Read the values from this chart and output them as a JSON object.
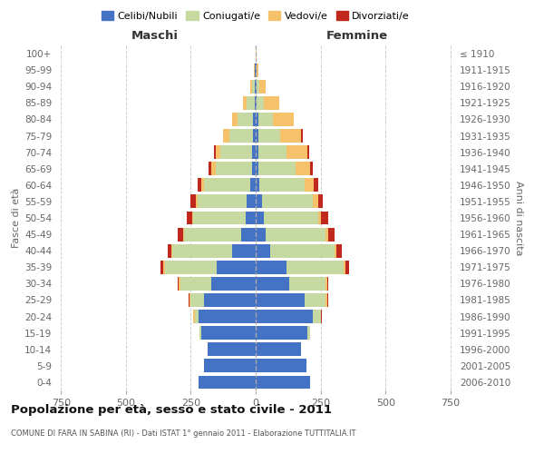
{
  "age_groups": [
    "0-4",
    "5-9",
    "10-14",
    "15-19",
    "20-24",
    "25-29",
    "30-34",
    "35-39",
    "40-44",
    "45-49",
    "50-54",
    "55-59",
    "60-64",
    "65-69",
    "70-74",
    "75-79",
    "80-84",
    "85-89",
    "90-94",
    "95-99",
    "100+"
  ],
  "birth_years": [
    "2006-2010",
    "2001-2005",
    "1996-2000",
    "1991-1995",
    "1986-1990",
    "1981-1985",
    "1976-1980",
    "1971-1975",
    "1966-1970",
    "1961-1965",
    "1956-1960",
    "1951-1955",
    "1946-1950",
    "1941-1945",
    "1936-1940",
    "1931-1935",
    "1926-1930",
    "1921-1925",
    "1916-1920",
    "1911-1915",
    "≤ 1910"
  ],
  "male": {
    "celibi": [
      220,
      200,
      185,
      210,
      220,
      200,
      170,
      150,
      90,
      55,
      40,
      35,
      20,
      15,
      15,
      10,
      10,
      5,
      5,
      2,
      0
    ],
    "coniugati": [
      0,
      0,
      0,
      5,
      15,
      50,
      120,
      200,
      230,
      220,
      200,
      190,
      180,
      140,
      120,
      90,
      60,
      30,
      10,
      3,
      0
    ],
    "vedovi": [
      0,
      0,
      0,
      0,
      5,
      5,
      5,
      5,
      5,
      5,
      5,
      5,
      10,
      15,
      20,
      25,
      20,
      15,
      5,
      2,
      0
    ],
    "divorziati": [
      0,
      0,
      0,
      0,
      2,
      3,
      5,
      10,
      15,
      20,
      20,
      20,
      15,
      10,
      5,
      0,
      0,
      0,
      0,
      0,
      0
    ]
  },
  "female": {
    "nubili": [
      210,
      195,
      175,
      200,
      220,
      190,
      130,
      120,
      55,
      40,
      30,
      25,
      15,
      10,
      10,
      10,
      10,
      5,
      5,
      2,
      0
    ],
    "coniugate": [
      0,
      0,
      0,
      10,
      30,
      80,
      140,
      220,
      250,
      230,
      210,
      195,
      175,
      145,
      110,
      85,
      55,
      25,
      8,
      2,
      0
    ],
    "vedove": [
      0,
      0,
      0,
      0,
      3,
      5,
      5,
      5,
      5,
      10,
      10,
      20,
      35,
      55,
      80,
      80,
      80,
      60,
      25,
      5,
      2
    ],
    "divorziate": [
      0,
      0,
      0,
      0,
      1,
      3,
      5,
      15,
      20,
      25,
      30,
      20,
      15,
      10,
      5,
      5,
      0,
      0,
      0,
      0,
      0
    ]
  },
  "colors": {
    "celibi": "#4472c4",
    "coniugati": "#c5d9a0",
    "vedovi": "#f5c26b",
    "divorziati": "#c0271d"
  },
  "title": "Popolazione per età, sesso e stato civile - 2011",
  "subtitle": "COMUNE DI FARA IN SABINA (RI) - Dati ISTAT 1° gennaio 2011 - Elaborazione TUTTITALIA.IT",
  "xlabel_left": "Maschi",
  "xlabel_right": "Femmine",
  "ylabel_left": "Fasce di età",
  "ylabel_right": "Anni di nascita",
  "legend_labels": [
    "Celibi/Nubili",
    "Coniugati/e",
    "Vedovi/e",
    "Divorziati/e"
  ],
  "xlim": 775,
  "background_color": "#ffffff",
  "grid_color": "#c8c8c8"
}
